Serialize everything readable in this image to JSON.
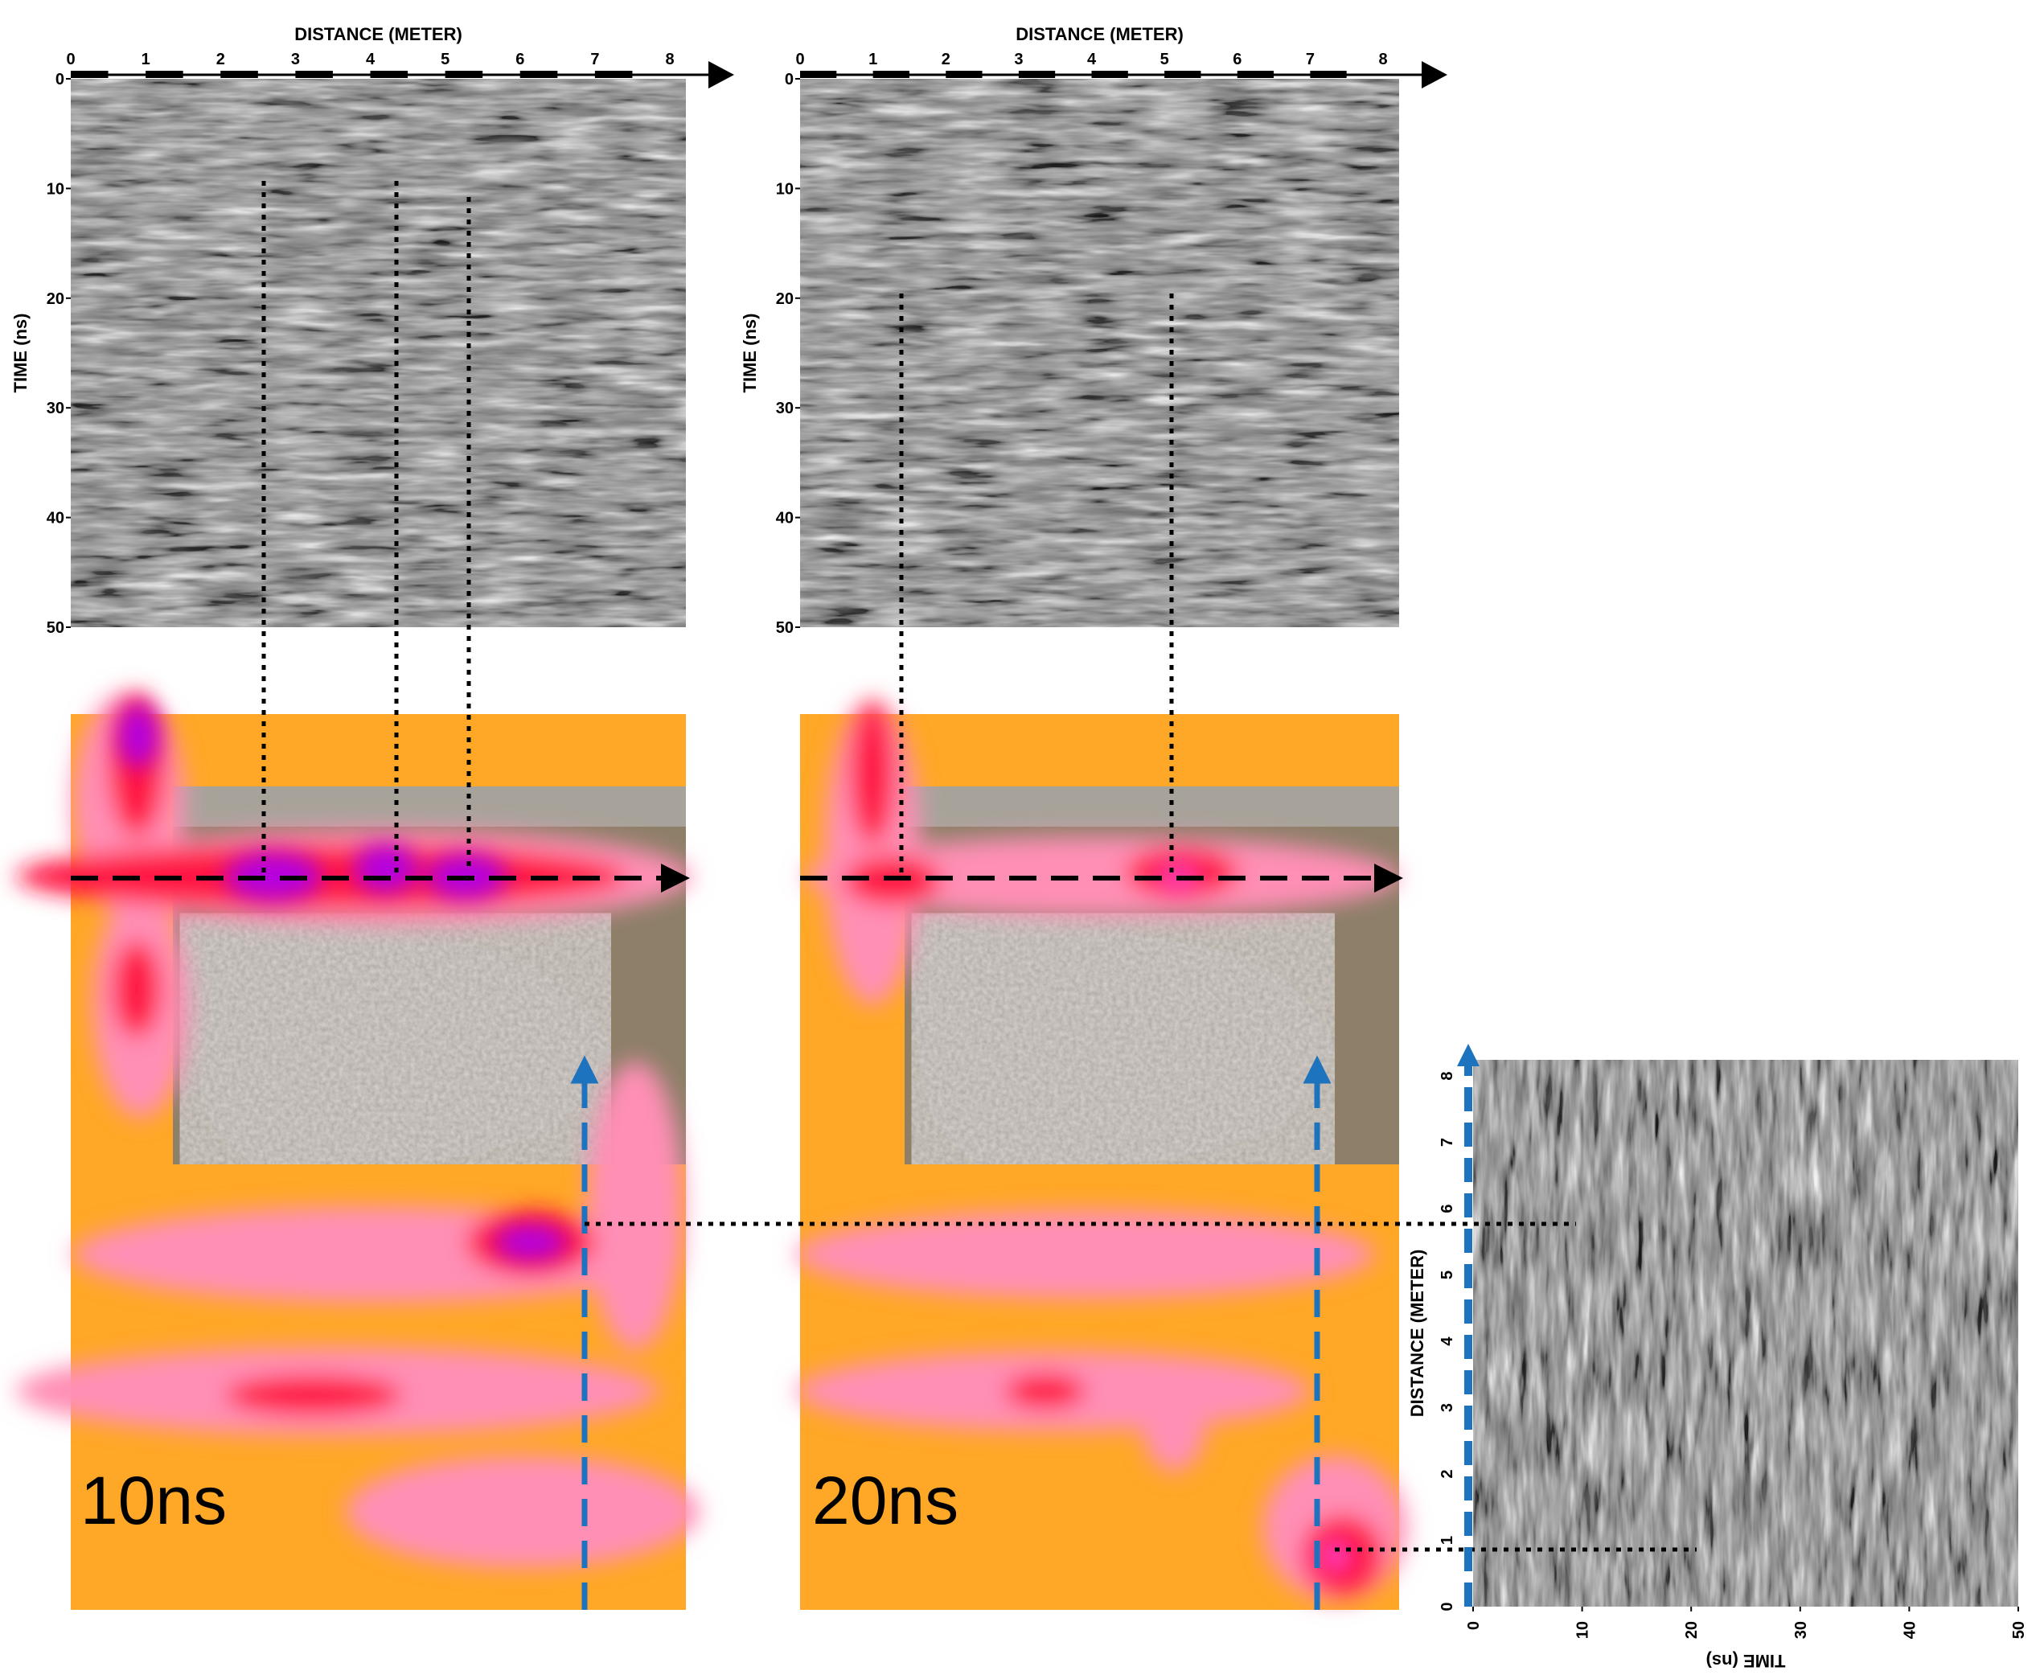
{
  "profiles": [
    {
      "id": "profile-a",
      "x_axis": {
        "title": "DISTANCE (METER)",
        "ticks": [
          "0",
          "1",
          "2",
          "3",
          "4",
          "5",
          "6",
          "7",
          "8"
        ]
      },
      "y_axis": {
        "title": "TIME (ns)",
        "ticks": [
          "0",
          "10",
          "20",
          "30",
          "40",
          "50"
        ]
      }
    },
    {
      "id": "profile-b",
      "x_axis": {
        "title": "DISTANCE (METER)",
        "ticks": [
          "0",
          "1",
          "2",
          "3",
          "4",
          "5",
          "6",
          "7",
          "8"
        ]
      },
      "y_axis": {
        "title": "TIME (ns)",
        "ticks": [
          "0",
          "10",
          "20",
          "30",
          "40",
          "50"
        ]
      }
    },
    {
      "id": "profile-c",
      "x_axis": {
        "title": "TIME (ns)",
        "ticks": [
          "0",
          "10",
          "20",
          "30",
          "40",
          "50"
        ]
      },
      "y_axis": {
        "title": "DISTANCE (METER)",
        "ticks": [
          "0",
          "1",
          "2",
          "3",
          "4",
          "5",
          "6",
          "7",
          "8"
        ]
      }
    }
  ],
  "time_slices": [
    {
      "id": "slice-10ns",
      "label": "10ns"
    },
    {
      "id": "slice-20ns",
      "label": "20ns"
    }
  ],
  "colors": {
    "background_anomaly": "#ffa726",
    "moderate_anomaly": "#ff8fb5",
    "strong_anomaly": "#ff1744",
    "peak_anomaly": "#b000e8",
    "profile_line": "#000000",
    "crossline_profile": "#1e73be",
    "rock_mound": "#9a9089",
    "terrain": "#8d7f68"
  }
}
